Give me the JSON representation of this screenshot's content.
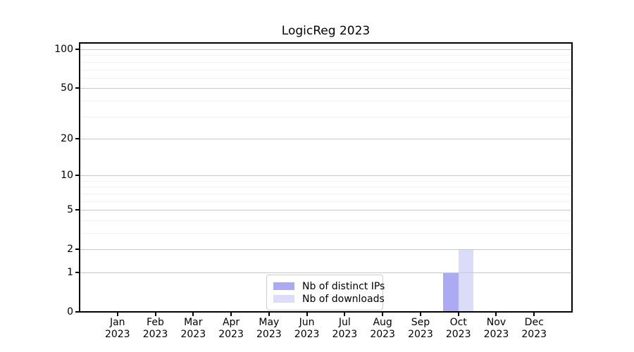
{
  "title": "LogicReg 2023",
  "chart_data": {
    "type": "bar",
    "title": "LogicReg 2023",
    "categories": [
      "Jan",
      "Feb",
      "Mar",
      "Apr",
      "May",
      "Jun",
      "Jul",
      "Aug",
      "Sep",
      "Oct",
      "Nov",
      "Dec"
    ],
    "category_year": "2023",
    "series": [
      {
        "name": "Nb of distinct IPs",
        "color": "#abaaf3",
        "values": [
          0,
          0,
          0,
          0,
          0,
          0,
          0,
          0,
          0,
          1,
          0,
          0
        ]
      },
      {
        "name": "Nb of downloads",
        "color": "#dbdbfa",
        "values": [
          0,
          0,
          0,
          0,
          0,
          0,
          0,
          0,
          0,
          2,
          0,
          0
        ]
      }
    ],
    "y_axis": {
      "scale": "log1p",
      "ticks": [
        0,
        1,
        2,
        5,
        10,
        20,
        50,
        100
      ],
      "minor_ticks": [
        3,
        4,
        6,
        7,
        8,
        9,
        30,
        40,
        60,
        70,
        80,
        90
      ],
      "ylim": [
        0,
        112
      ]
    },
    "xlabel": "",
    "ylabel": "",
    "grid": true,
    "legend_position": "lower center"
  },
  "colors": {
    "major_grid": "#c8c8c8",
    "minor_grid": "#f0f0f0",
    "axis": "#000000",
    "background": "#ffffff"
  }
}
